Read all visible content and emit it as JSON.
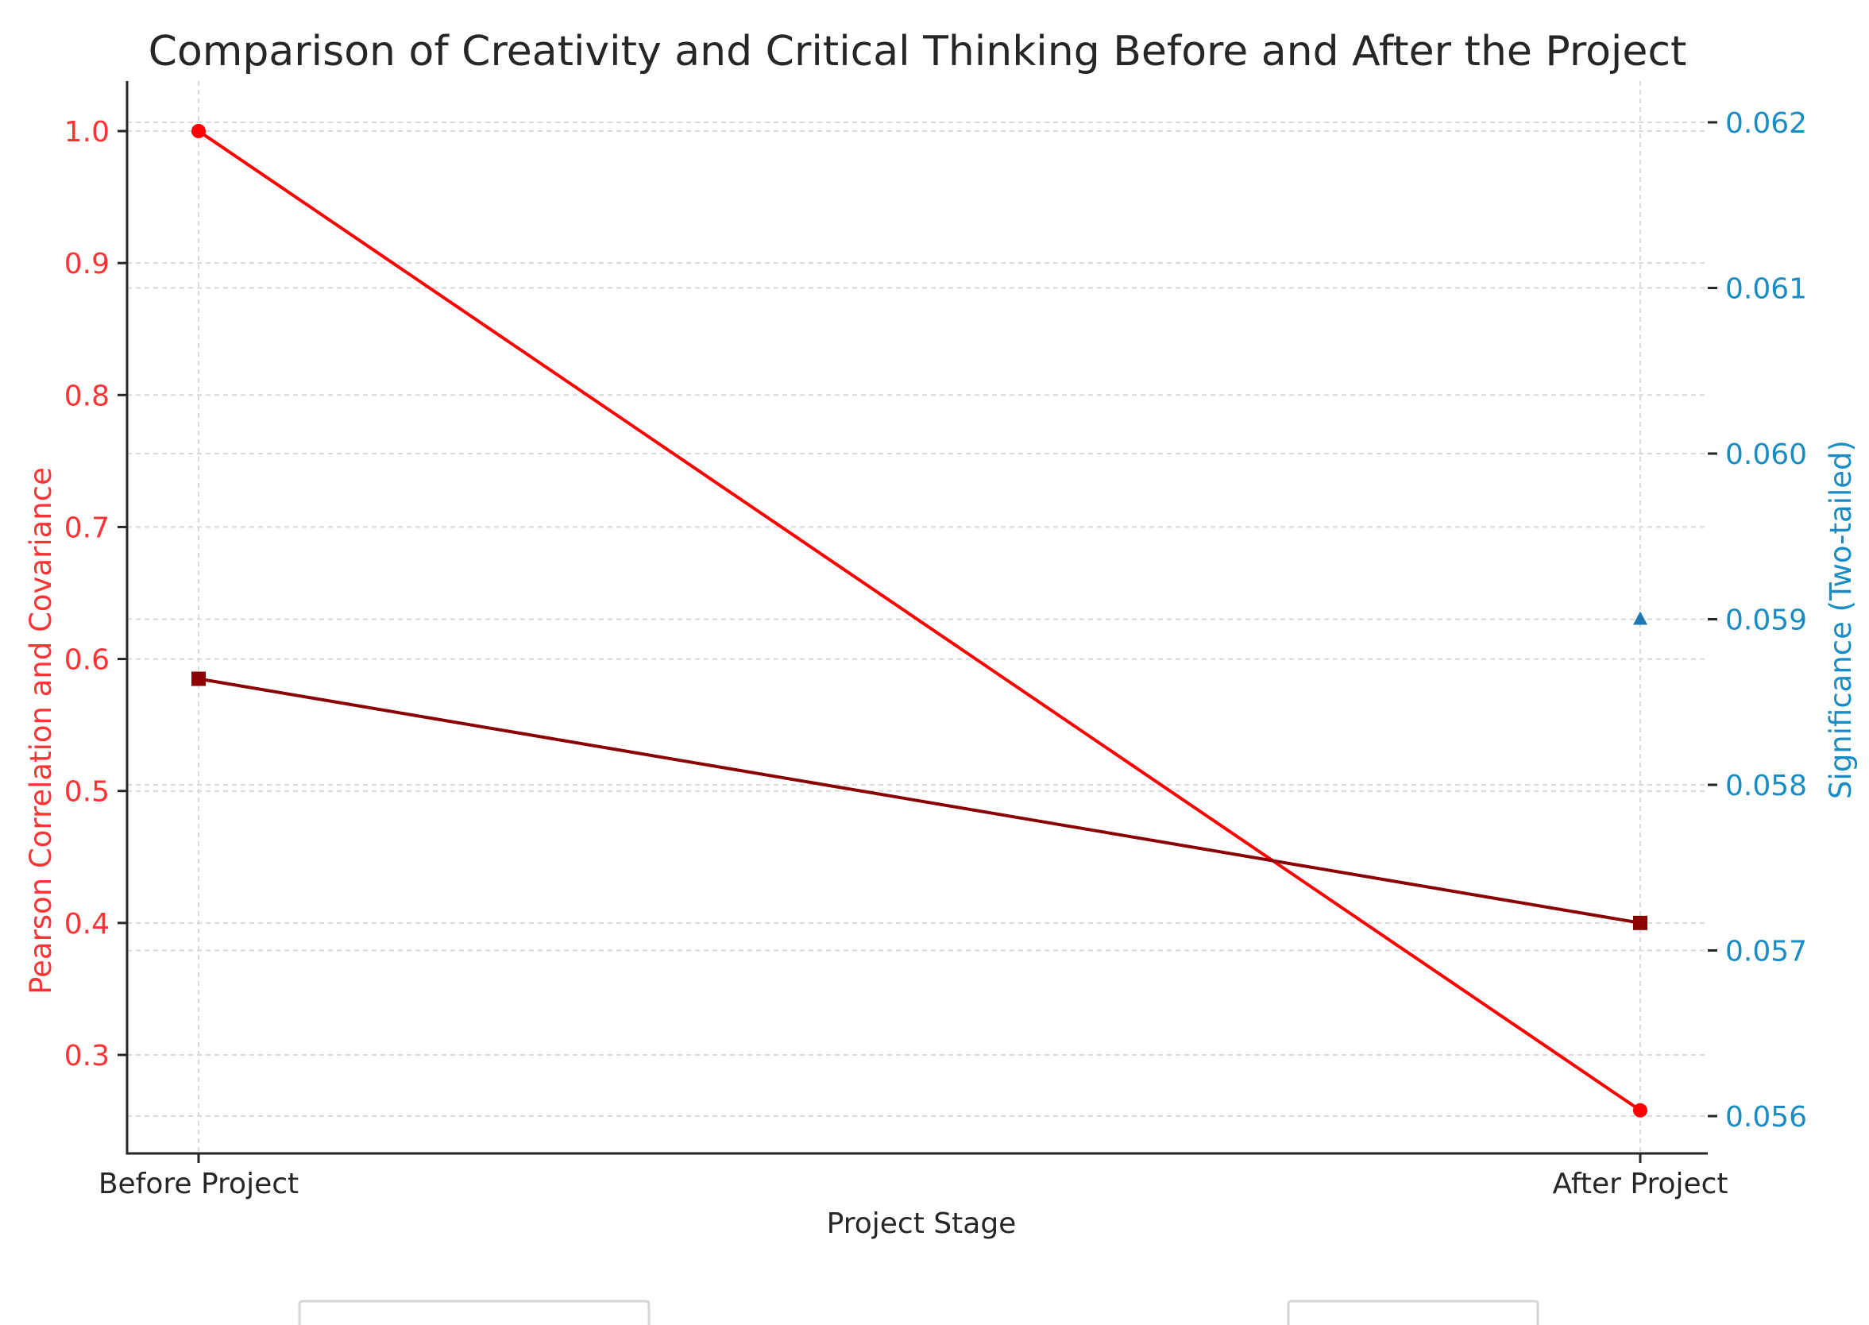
{
  "chart_data": {
    "type": "line",
    "title": "Comparison of Creativity and Critical Thinking Before and After the Project",
    "xlabel": "Project Stage",
    "ylabel_left": "Pearson Correlation and Covariance",
    "ylabel_right": "Significance (Two-tailed)",
    "categories": [
      "Before Project",
      "After Project"
    ],
    "ylim_left": [
      0.25,
      1.03
    ],
    "ylim_right": [
      0.0558,
      0.0622
    ],
    "yticks_left": [
      "0.3",
      "0.4",
      "0.5",
      "0.6",
      "0.7",
      "0.8",
      "0.9",
      "1.0"
    ],
    "yticks_right": [
      "0.056",
      "0.057",
      "0.058",
      "0.059",
      "0.060",
      "0.061",
      "0.062"
    ],
    "grid": true,
    "series": [
      {
        "axis": "left",
        "color": "#ff0000",
        "marker": "circle",
        "values": [
          1.0,
          0.258
        ]
      },
      {
        "axis": "left",
        "color": "#8b0000",
        "marker": "square",
        "values": [
          0.585,
          0.4
        ]
      },
      {
        "axis": "right",
        "color": "#1f77b4",
        "marker": "triangle",
        "values": [
          null,
          0.059
        ]
      }
    ],
    "colors": {
      "left_axis": "#ff3333",
      "right_axis": "#1a8cc4"
    }
  }
}
